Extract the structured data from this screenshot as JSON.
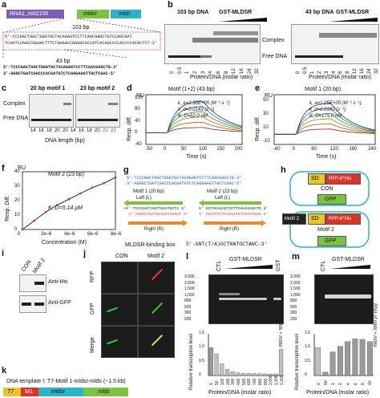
{
  "colors": {
    "purple": "#7b5fb4",
    "green": "#7cc243",
    "teal": "#2bb3c8",
    "red": "#d9352b",
    "orange": "#e98a2e",
    "yellow": "#e8c52a",
    "grey": "#9a9a9a"
  },
  "panel_a": {
    "label": "a",
    "gene1": "RHA1_ro02106",
    "gene2": "mldsr",
    "gene3": "mlds",
    "dna103": "103 bp",
    "seq_line1": "5'-CCCGACTAGCTGGGTGCTACAGAGTCCTTCAACGAGCTGTCCAGCGAT",
    "seq_line2": "TCAATCCAGGTGGAACTTTCTGAAACCGGGGCGCCATCACAGCCCCACCCCACACTCT-3'",
    "dna43": "43 bp",
    "seq43_1": "5'-TCCCGACTAGCTGGGTGCTACAGAGTCCTTCAACGAGCTG-3'",
    "seq43_2": "3'-GGGCTGATCGACCCACGATGTCTCAGGAAGTTGCTCGAC-5'"
  },
  "panel_b": {
    "label": "b",
    "title1": "103 bp DNA",
    "title2": "43 bp DNA",
    "protein": "GST-MLDSR",
    "complex": "Complex",
    "free": "Free DNA",
    "ticks": [
      "0",
      "0.5",
      "1",
      "2",
      "3",
      "4",
      "6",
      "8",
      "12",
      "16",
      "24",
      "32"
    ],
    "xlabel": "Protein/DNA (molar ratio)"
  },
  "panel_c": {
    "label": "c",
    "t1": "20 bp motif 1",
    "t2": "23 bp motif 2",
    "complex": "Complex",
    "free": "Free DNA",
    "ticks": [
      "14",
      "16",
      "18",
      "20",
      "20",
      "14",
      "16",
      "18",
      "20",
      "21",
      "23"
    ],
    "xlabel": "DNA length (bp)"
  },
  "panel_d": {
    "label": "d",
    "title": "Motif (1+2) (43 bp)",
    "ru": "RU",
    "ylabel": "Resp. diff.",
    "xlabel": "Time (s)",
    "ka": "k_a=2.30E+05 (M⁻¹ s⁻¹)",
    "kd": "k_d=0.0143 (s⁻¹)",
    "KD": "K_D=62.0 nM",
    "yticks": [
      "120",
      "80",
      "40",
      "0",
      "-40"
    ],
    "xticks": [
      "-50",
      "0",
      "50",
      "100",
      "150",
      "200"
    ]
  },
  "panel_e": {
    "label": "e",
    "title": "Motif 1 (20 bp)",
    "ru": "RU",
    "ylabel": "Resp. diff.",
    "xlabel": "Time (s)",
    "ka": "k_a=1.05E+05 (M⁻¹ s⁻¹)",
    "kd": "k_d=0.0183 (s⁻¹)",
    "KD": "K_D=175.0 nM",
    "yticks": [
      "50",
      "30",
      "10",
      "-10"
    ],
    "xticks": [
      "-60",
      "0",
      "60",
      "120",
      "180",
      "240"
    ]
  },
  "panel_f": {
    "label": "f",
    "ru": "RU",
    "title": "Motif 2 (23 bp)",
    "ylabel": "Resp. Diff.",
    "xlabel": "Concentration (M)",
    "KD": "K_D=5.14 μM",
    "yticks": [
      "40",
      "30",
      "20",
      "10",
      "0"
    ],
    "xticks": [
      "0",
      "2e–6",
      "4e–6",
      "6e–6",
      "8e–6"
    ]
  },
  "panel_g": {
    "label": "g",
    "s1": "5'-TCCCGACTAGCTGGGTGCTACAGAGTCCTTCAACGAGCTG-3'",
    "s2": "3'-AGGGCTGATCGACCCACGATGTCTCAGGAAGTTGCTCGAC-5'",
    "m1": "Motif 1 (20 bp)",
    "m2": "Motif 2 (23 bp)",
    "left": "Left (L)",
    "right": "Right (R)",
    "l1": "+5' TCCCGACTAGCTGGGTGCTA 3'",
    "l2": "3' AGGGCTGATCGACCCACGAT 5'",
    "l3": "5' GCTACAGAGTCCTTCAACGAGCTG 3'",
    "l4": "3' CGATGTCTCAGGAAGTTGCTCGAC 5'",
    "box": "MLDSR-binding box",
    "consensus": "5'-GNT(T/A)GCTNNTGCTANC-3'"
  },
  "panel_h": {
    "label": "h",
    "sd": "SD",
    "rfp": "RFP-6*His",
    "con": "CON",
    "gfp": "GFP",
    "motif": "Motif 2"
  },
  "panel_i": {
    "label": "i",
    "con": "CON",
    "motif": "Motif 2",
    "his": "Anti-His",
    "gfp": "Anti-GFP"
  },
  "panel_j": {
    "label": "j",
    "con": "CON",
    "motif": "Motif 2",
    "rfp": "RFP",
    "gfp": "GFP",
    "merge": "Merge"
  },
  "panel_k": {
    "label": "k",
    "title": "DNA template I: T7-Motif 1-mldsr-mlds (~1.5 kb)",
    "t7": "T7",
    "m1": "M1",
    "mldsr": "mldsr",
    "mlds": "mlds"
  },
  "panel_l": {
    "label": "l",
    "ctl": "CTL",
    "gst_mldsr": "GST-MLDSR",
    "gst": "GST",
    "rna": "RNA of mlds + mldsr",
    "sizes": [
      "3,000",
      "2,000",
      "1,500",
      "1,000",
      "800",
      "500",
      "300",
      "200"
    ],
    "ylabel": "Relative transcription level",
    "xlabel": "Protein/DNA (molar ratio)",
    "yticks": [
      "1.5",
      "1.0",
      "0.5",
      "0"
    ],
    "xticks": [
      "0",
      "50",
      "100",
      "200",
      "300",
      "400",
      "500",
      "600",
      "700",
      "800",
      "900",
      "1,000",
      "1,200",
      "1,200"
    ]
  },
  "panel_m": {
    "label": "m",
    "ctl": "CTL",
    "gst_mldsr": "GST-MLDSR",
    "rna": "RNA of mlds + mldsr",
    "sizes": [
      "3,000",
      "2,000",
      "1,500",
      "1,000",
      "800",
      "500",
      "300",
      "200"
    ],
    "ylabel": "Relative transcription level",
    "xlabel": "Protein/DNA (molar ratio)",
    "yticks": [
      "1.5",
      "1.0",
      "0.5",
      "0"
    ],
    "xticks": [
      "0",
      "50",
      "1",
      "2",
      "4",
      "6",
      "8",
      "10"
    ]
  },
  "chart_data": [
    {
      "type": "bar",
      "panel": "l",
      "categories": [
        "0",
        "50",
        "100",
        "200",
        "300",
        "400",
        "500",
        "600",
        "700",
        "800",
        "900",
        "1,000",
        "1,200",
        "1,200"
      ],
      "values": [
        1.0,
        0.78,
        0.42,
        0.22,
        0.14,
        0.1,
        0.08,
        0.08,
        0.07,
        0.07,
        0.06,
        0.05,
        0.06,
        0.95
      ],
      "ylim": [
        0,
        1.5
      ]
    },
    {
      "type": "bar",
      "panel": "m",
      "categories": [
        "0",
        "50",
        "1",
        "2",
        "4",
        "6",
        "8",
        "10"
      ],
      "values": [
        1.0,
        0.12,
        0.85,
        1.05,
        1.22,
        1.32,
        1.3,
        1.22
      ],
      "ylim": [
        0,
        1.5
      ]
    },
    {
      "type": "scatter",
      "panel": "f",
      "x": [
        0,
        1e-06,
        2e-06,
        3e-06,
        4e-06,
        5e-06,
        6e-06,
        7e-06,
        8e-06
      ],
      "y": [
        0,
        6,
        12,
        17,
        21,
        25,
        29,
        32,
        36
      ],
      "ylim": [
        0,
        40
      ],
      "xlim": [
        0,
        8e-06
      ]
    }
  ]
}
